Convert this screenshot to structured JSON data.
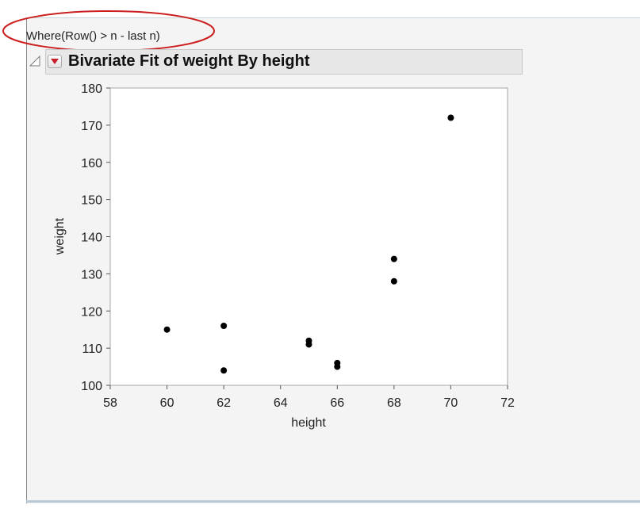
{
  "filter": {
    "where_text": "Where(Row() > n - last n)"
  },
  "report": {
    "title": "Bivariate Fit of weight By height"
  },
  "colors": {
    "annotation": "#cc1f1f",
    "menu_arrow": "#c8202a",
    "points": "#000000"
  },
  "chart_data": {
    "type": "scatter",
    "title": "Bivariate Fit of weight By height",
    "xlabel": "height",
    "ylabel": "weight",
    "xlim": [
      58,
      72
    ],
    "ylim": [
      100,
      180
    ],
    "xticks": [
      58,
      60,
      62,
      64,
      66,
      68,
      70,
      72
    ],
    "yticks": [
      100,
      110,
      120,
      130,
      140,
      150,
      160,
      170,
      180
    ],
    "grid": false,
    "points": [
      {
        "x": 60,
        "y": 115
      },
      {
        "x": 62,
        "y": 116
      },
      {
        "x": 62,
        "y": 104
      },
      {
        "x": 65,
        "y": 112
      },
      {
        "x": 65,
        "y": 111
      },
      {
        "x": 66,
        "y": 106
      },
      {
        "x": 66,
        "y": 105
      },
      {
        "x": 68,
        "y": 134
      },
      {
        "x": 68,
        "y": 128
      },
      {
        "x": 70,
        "y": 172
      }
    ]
  }
}
